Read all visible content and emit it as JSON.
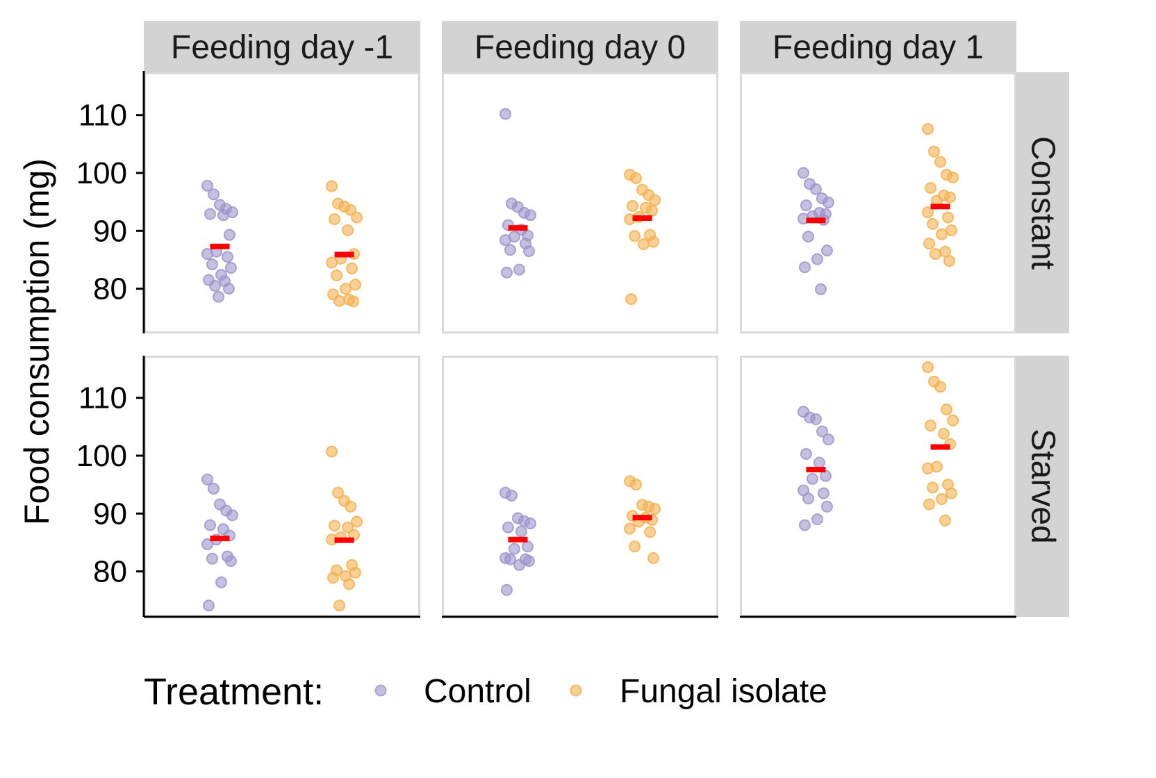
{
  "chart_data": {
    "type": "scatter",
    "subtype": "faceted-jitter-with-mean",
    "facet_columns": [
      "Feeding day -1",
      "Feeding day 0",
      "Feeding day 1"
    ],
    "facet_rows": [
      "Constant",
      "Starved"
    ],
    "ylabel": "Food consumption (mg)",
    "xlabel": "",
    "ylim": [
      72,
      117
    ],
    "yticks": [
      80,
      90,
      100,
      110
    ],
    "grid": false,
    "legend": {
      "title": "Treatment:",
      "position": "bottom",
      "entries": [
        "Control",
        "Fungal isolate"
      ]
    },
    "colors": {
      "Control": "#9e94cc",
      "Fungal isolate": "#f5b050",
      "mean": "#ff0000",
      "strip_bg": "#d3d3d3",
      "panel_border": "#d9d9d9"
    },
    "categories": [
      "Control",
      "Fungal isolate"
    ],
    "panels": [
      {
        "row": "Constant",
        "col": "Feeding day -1",
        "series": [
          {
            "name": "Control",
            "mean": 87.3,
            "values": [
              97.8,
              96.3,
              94.5,
              93.8,
              93.2,
              92.9,
              92.7,
              89.3,
              86.4,
              86.0,
              85.5,
              84.2,
              83.6,
              82.4,
              81.5,
              81.3,
              80.5,
              80.0,
              78.6
            ]
          },
          {
            "name": "Fungal isolate",
            "mean": 85.9,
            "values": [
              97.7,
              94.7,
              94.2,
              93.6,
              92.3,
              92.0,
              90.1,
              86.0,
              85.2,
              84.5,
              83.5,
              82.3,
              80.7,
              80.0,
              79.0,
              78.1,
              77.9,
              77.8
            ]
          }
        ]
      },
      {
        "row": "Constant",
        "col": "Feeding day 0",
        "series": [
          {
            "name": "Control",
            "mean": 90.5,
            "values": [
              110.2,
              94.7,
              94.1,
              93.1,
              92.7,
              91.0,
              90.2,
              89.2,
              89.0,
              88.4,
              87.8,
              86.7,
              86.5,
              83.3,
              82.8
            ]
          },
          {
            "name": "Fungal isolate",
            "mean": 92.2,
            "values": [
              99.7,
              99.1,
              97.1,
              96.2,
              95.3,
              94.3,
              94.0,
              93.5,
              92.4,
              92.0,
              89.3,
              89.1,
              88.1,
              87.7,
              78.2
            ]
          }
        ]
      },
      {
        "row": "Constant",
        "col": "Feeding day 1",
        "series": [
          {
            "name": "Control",
            "mean": 91.8,
            "values": [
              100.0,
              98.1,
              97.2,
              95.6,
              94.9,
              94.4,
              93.1,
              92.9,
              92.5,
              92.1,
              91.9,
              89.0,
              86.6,
              85.1,
              83.7,
              79.9
            ]
          },
          {
            "name": "Fungal isolate",
            "mean": 94.2,
            "values": [
              107.6,
              103.7,
              101.9,
              99.7,
              99.2,
              97.4,
              96.1,
              95.8,
              95.2,
              93.2,
              92.3,
              91.2,
              90.1,
              89.4,
              87.8,
              86.4,
              86.0,
              84.8
            ]
          }
        ]
      },
      {
        "row": "Starved",
        "col": "Feeding day -1",
        "series": [
          {
            "name": "Control",
            "mean": 85.7,
            "values": [
              95.9,
              94.3,
              91.6,
              90.5,
              89.7,
              88.0,
              87.3,
              86.2,
              85.5,
              84.7,
              82.6,
              82.2,
              81.8,
              78.1,
              74.1
            ]
          },
          {
            "name": "Fungal isolate",
            "mean": 85.4,
            "values": [
              100.7,
              93.6,
              92.2,
              91.2,
              88.6,
              87.9,
              87.6,
              86.3,
              85.9,
              85.5,
              81.1,
              80.2,
              79.8,
              79.2,
              78.9,
              77.8,
              74.1
            ]
          }
        ]
      },
      {
        "row": "Starved",
        "col": "Feeding day 0",
        "series": [
          {
            "name": "Control",
            "mean": 85.5,
            "values": [
              93.6,
              93.1,
              89.2,
              88.7,
              88.3,
              87.6,
              86.9,
              84.3,
              83.9,
              82.3,
              82.1,
              82.1,
              81.8,
              81.1,
              76.8
            ]
          },
          {
            "name": "Fungal isolate",
            "mean": 89.3,
            "values": [
              95.6,
              95.0,
              91.5,
              91.2,
              90.8,
              89.6,
              89.3,
              88.9,
              88.6,
              87.4,
              86.8,
              84.3,
              82.3
            ]
          }
        ]
      },
      {
        "row": "Starved",
        "col": "Feeding day 1",
        "series": [
          {
            "name": "Control",
            "mean": 97.6,
            "values": [
              107.6,
              106.6,
              106.3,
              104.2,
              102.8,
              100.3,
              98.8,
              96.5,
              96.0,
              94.0,
              93.5,
              92.6,
              91.2,
              89.0,
              88.0
            ]
          },
          {
            "name": "Fungal isolate",
            "mean": 101.5,
            "values": [
              115.3,
              112.8,
              111.9,
              108.0,
              106.1,
              105.2,
              103.8,
              102.0,
              98.1,
              97.8,
              95.0,
              94.5,
              93.5,
              92.5,
              91.6,
              88.8
            ]
          }
        ]
      }
    ]
  }
}
